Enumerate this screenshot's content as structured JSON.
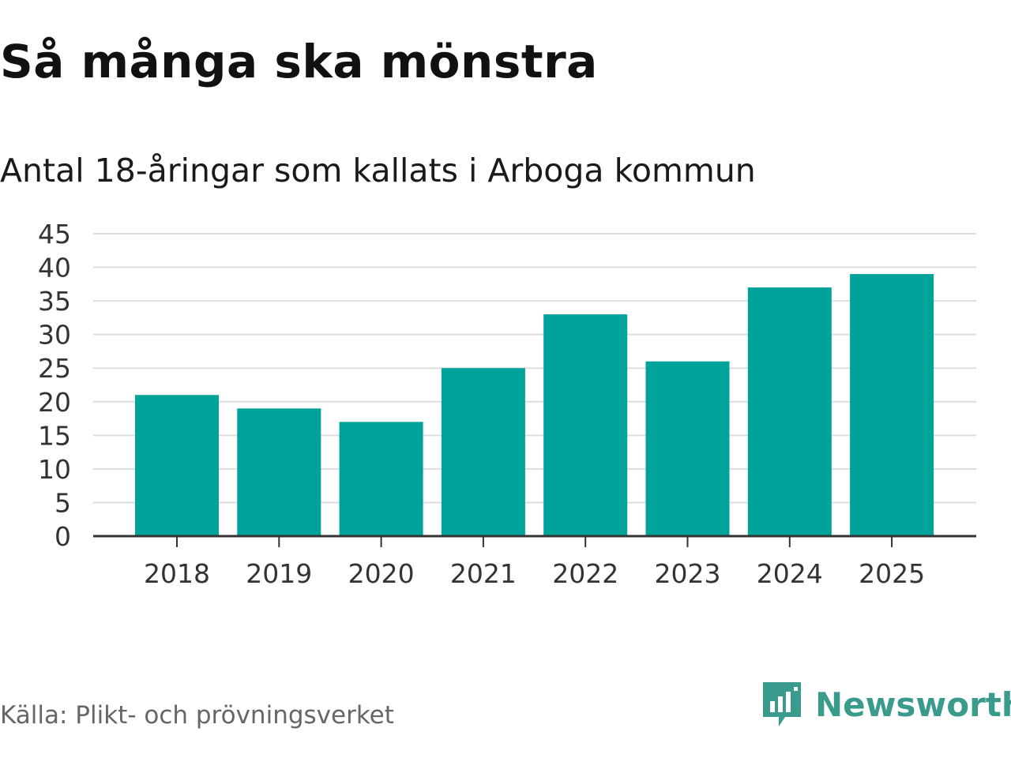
{
  "chart_data": {
    "type": "bar",
    "title": "Så många ska mönstra",
    "subtitle": "Antal 18-åringar som kallats i Arboga kommun",
    "xlabel": "",
    "ylabel": "",
    "categories": [
      "2018",
      "2019",
      "2020",
      "2021",
      "2022",
      "2023",
      "2024",
      "2025"
    ],
    "values": [
      21,
      19,
      17,
      25,
      33,
      26,
      37,
      39
    ],
    "ylim": [
      0,
      45
    ],
    "yticks": [
      0,
      5,
      10,
      15,
      20,
      25,
      30,
      35,
      40,
      45
    ],
    "grid": true,
    "bar_color": "#00a39a"
  },
  "source": "Källa: Plikt- och prövningsverket",
  "brand": {
    "name": "Newsworthy",
    "icon": "newsworthy-logo-icon",
    "color": "#3a9a8c"
  }
}
